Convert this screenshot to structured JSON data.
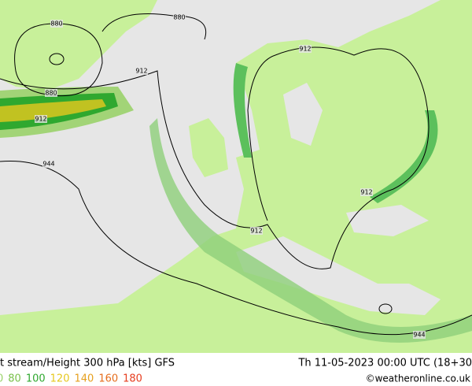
{
  "map": {
    "title": "t stream/Height 300 hPa [kts] GFS",
    "valid_time": "Th 11-05-2023 00:00 UTC (18+30",
    "credit": "©weatheronline.co.uk",
    "legend": [
      {
        "label": "0",
        "color": "#9ad26a"
      },
      {
        "label": "80",
        "color": "#79c04a"
      },
      {
        "label": "100",
        "color": "#2fa82f"
      },
      {
        "label": "120",
        "color": "#e6c81e"
      },
      {
        "label": "140",
        "color": "#e6a01e"
      },
      {
        "label": "160",
        "color": "#e66e1e"
      },
      {
        "label": "180",
        "color": "#e63c1e"
      }
    ],
    "contours": [
      {
        "label": "880"
      },
      {
        "label": "880"
      },
      {
        "label": "880"
      },
      {
        "label": "912"
      },
      {
        "label": "912"
      },
      {
        "label": "912"
      },
      {
        "label": "912"
      },
      {
        "label": "912"
      },
      {
        "label": "944"
      },
      {
        "label": "944"
      }
    ]
  }
}
